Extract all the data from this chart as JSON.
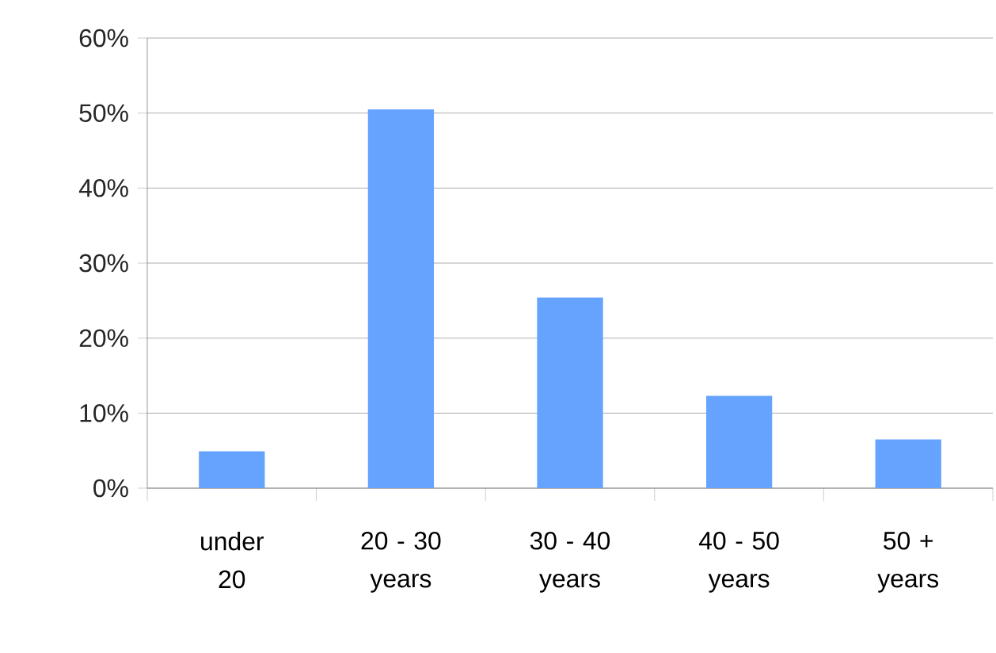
{
  "chart_data": {
    "type": "bar",
    "categories": [
      "under 20",
      "20 - 30 years",
      "30 - 40 years",
      "40 - 50 years",
      "50 + years"
    ],
    "values": [
      4.9,
      50.5,
      25.4,
      12.3,
      6.5
    ],
    "color": "#66a3ff",
    "ylim": [
      0,
      60
    ],
    "yticks": [
      {
        "value": 0,
        "label": "0%"
      },
      {
        "value": 10,
        "label": "10%"
      },
      {
        "value": 20,
        "label": "20%"
      },
      {
        "value": 30,
        "label": "30%"
      },
      {
        "value": 40,
        "label": "40%"
      },
      {
        "value": 50,
        "label": "50%"
      },
      {
        "value": 60,
        "label": "60%"
      }
    ],
    "grid": "y"
  }
}
